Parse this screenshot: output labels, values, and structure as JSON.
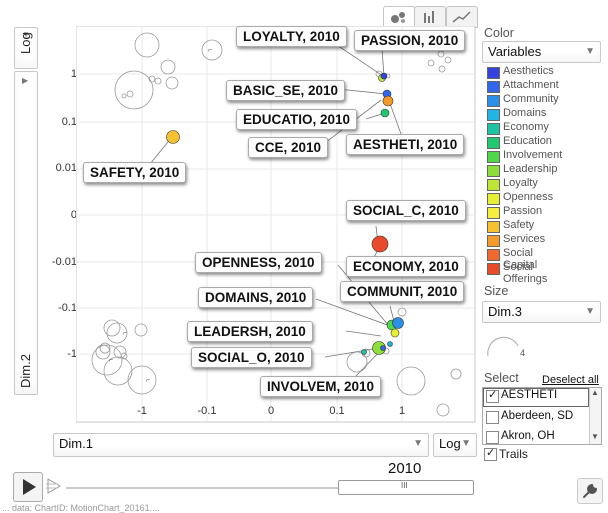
{
  "chart_tabs": [
    {
      "name": "bubble",
      "icon": "bubble-chart-icon",
      "active": true
    },
    {
      "name": "bar",
      "icon": "bar-chart-icon",
      "active": false
    },
    {
      "name": "line",
      "icon": "line-chart-icon",
      "active": false
    }
  ],
  "yaxis": {
    "scale_label": "Log",
    "title": "Dim.2",
    "ticks": [
      "1",
      "0.1",
      "0.01",
      "0",
      "-0.01",
      "-0.1",
      "-1"
    ]
  },
  "xaxis": {
    "select_value": "Dim.1",
    "scale_label": "Log",
    "ticks": [
      "-1",
      "-0.1",
      "0",
      "0.1",
      "1"
    ]
  },
  "bubble_labels": [
    "LOYALTY, 2010",
    "PASSION, 2010",
    "BASIC_SE, 2010",
    "EDUCATIO, 2010",
    "CCE, 2010",
    "AESTHETI, 2010",
    "SAFETY, 2010",
    "SOCIAL_C, 2010",
    "OPENNESS, 2010",
    "ECONOMY, 2010",
    "DOMAINS, 2010",
    "COMMUNIT, 2010",
    "LEADERSH, 2010",
    "SOCIAL_O, 2010",
    "INVOLVEM, 2010"
  ],
  "color_panel": {
    "title": "Color",
    "select_value": "Variables",
    "legend": [
      {
        "label": "Aesthetics",
        "color": "#3344dd"
      },
      {
        "label": "Attachment",
        "color": "#3366ee"
      },
      {
        "label": "Community",
        "color": "#2a8fe6"
      },
      {
        "label": "Domains",
        "color": "#22b4e0"
      },
      {
        "label": "Economy",
        "color": "#1fc4a6"
      },
      {
        "label": "Education",
        "color": "#22c870"
      },
      {
        "label": "Involvement",
        "color": "#4fd64a"
      },
      {
        "label": "Leadership",
        "color": "#8ede3a"
      },
      {
        "label": "Loyalty",
        "color": "#bde636"
      },
      {
        "label": "Openness",
        "color": "#e6ef34"
      },
      {
        "label": "Passion",
        "color": "#f5ee3c"
      },
      {
        "label": "Safety",
        "color": "#f7c232"
      },
      {
        "label": "Services",
        "color": "#f49a2a"
      },
      {
        "label": "Social Capital",
        "color": "#ef6a2c"
      },
      {
        "label": "Social Offerings",
        "color": "#e84a2a"
      }
    ]
  },
  "size_panel": {
    "title": "Size",
    "select_value": "Dim.3",
    "gauge_value": "4"
  },
  "select_panel": {
    "title": "Select",
    "deselect_label": "Deselect all",
    "items": [
      {
        "label": "AESTHETI",
        "checked": true
      },
      {
        "label": "Aberdeen, SD",
        "checked": false
      },
      {
        "label": "Akron, OH",
        "checked": false
      }
    ]
  },
  "trails": {
    "label": "Trails",
    "checked": true
  },
  "timeline": {
    "year": "2010",
    "thumb_glyph": "III"
  },
  "footer": {
    "text": "... data: ChartID: MotionChart_20161...."
  }
}
